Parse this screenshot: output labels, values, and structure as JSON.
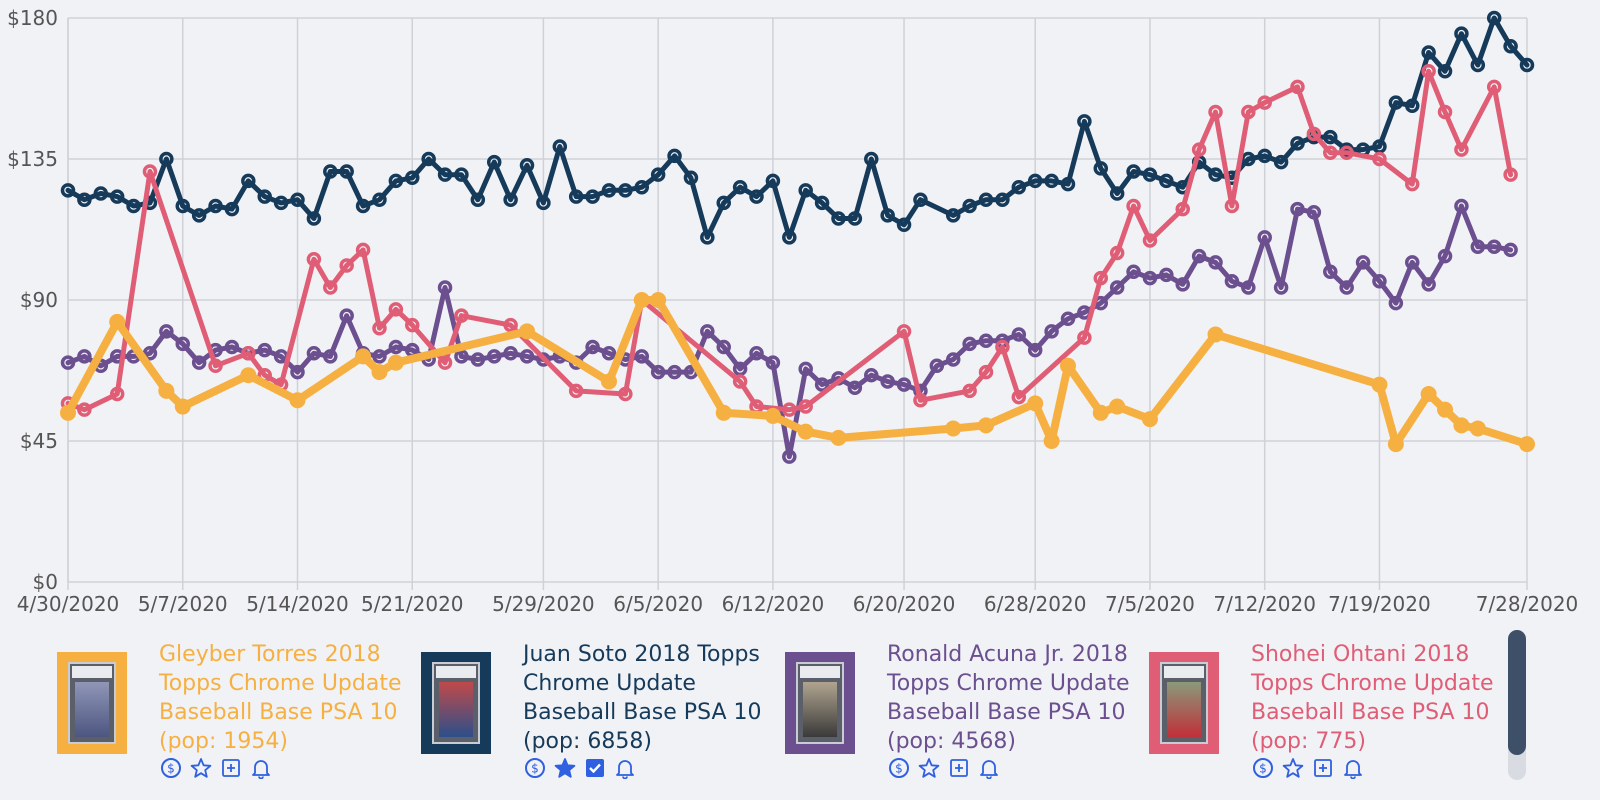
{
  "colors": {
    "torres": "#f6b041",
    "soto": "#163a5a",
    "acuna": "#6b4f8f",
    "ohtani": "#e05d76",
    "grid": "#cfd1d6",
    "action": "#2f60e0"
  },
  "chart_data": {
    "type": "line",
    "x_axis": {
      "type": "date",
      "range": [
        "2020-04-30",
        "2020-07-28"
      ],
      "ticks": [
        "4/30/2020",
        "5/7/2020",
        "5/14/2020",
        "5/21/2020",
        "5/29/2020",
        "6/5/2020",
        "6/12/2020",
        "6/20/2020",
        "6/28/2020",
        "7/5/2020",
        "7/12/2020",
        "7/19/2020",
        "7/28/2020"
      ]
    },
    "y_axis": {
      "range": [
        0,
        180
      ],
      "ticks": [
        "$0",
        "$45",
        "$90",
        "$135",
        "$180"
      ]
    },
    "grid": true,
    "series": [
      {
        "key": "soto",
        "name": "Juan Soto 2018 Topps Chrome Update Baseball Base PSA 10 (pop: 6858)",
        "color": "#163a5a",
        "x": [
          "2020-04-30",
          "2020-05-01",
          "2020-05-02",
          "2020-05-03",
          "2020-05-04",
          "2020-05-05",
          "2020-05-06",
          "2020-05-07",
          "2020-05-08",
          "2020-05-09",
          "2020-05-10",
          "2020-05-11",
          "2020-05-12",
          "2020-05-13",
          "2020-05-14",
          "2020-05-15",
          "2020-05-16",
          "2020-05-17",
          "2020-05-18",
          "2020-05-19",
          "2020-05-20",
          "2020-05-21",
          "2020-05-22",
          "2020-05-23",
          "2020-05-24",
          "2020-05-25",
          "2020-05-26",
          "2020-05-27",
          "2020-05-28",
          "2020-05-29",
          "2020-05-30",
          "2020-05-31",
          "2020-06-01",
          "2020-06-02",
          "2020-06-03",
          "2020-06-04",
          "2020-06-05",
          "2020-06-06",
          "2020-06-07",
          "2020-06-08",
          "2020-06-09",
          "2020-06-10",
          "2020-06-11",
          "2020-06-12",
          "2020-06-13",
          "2020-06-14",
          "2020-06-15",
          "2020-06-16",
          "2020-06-17",
          "2020-06-18",
          "2020-06-19",
          "2020-06-20",
          "2020-06-21",
          "2020-06-23",
          "2020-06-24",
          "2020-06-25",
          "2020-06-26",
          "2020-06-27",
          "2020-06-28",
          "2020-06-29",
          "2020-06-30",
          "2020-07-01",
          "2020-07-02",
          "2020-07-03",
          "2020-07-04",
          "2020-07-05",
          "2020-07-06",
          "2020-07-07",
          "2020-07-08",
          "2020-07-09",
          "2020-07-10",
          "2020-07-11",
          "2020-07-12",
          "2020-07-13",
          "2020-07-14",
          "2020-07-15",
          "2020-07-16",
          "2020-07-17",
          "2020-07-18",
          "2020-07-19",
          "2020-07-20",
          "2020-07-21",
          "2020-07-22",
          "2020-07-23",
          "2020-07-24",
          "2020-07-25",
          "2020-07-26",
          "2020-07-27",
          "2020-07-28"
        ],
        "values": [
          125,
          122,
          124,
          123,
          120,
          121,
          135,
          120,
          117,
          120,
          119,
          128,
          123,
          121,
          122,
          116,
          131,
          131,
          120,
          122,
          128,
          129,
          135,
          130,
          130,
          122,
          134,
          122,
          133,
          121,
          139,
          123,
          123,
          125,
          125,
          126,
          130,
          136,
          129,
          110,
          121,
          126,
          123,
          128,
          110,
          125,
          121,
          116,
          116,
          135,
          117,
          114,
          122,
          117,
          120,
          122,
          122,
          126,
          128,
          128,
          127,
          147,
          132,
          124,
          131,
          130,
          128,
          126,
          134,
          130,
          129,
          135,
          136,
          134,
          140,
          142,
          142,
          138,
          138,
          139,
          153,
          152,
          169,
          163,
          175,
          165,
          180,
          171,
          165
        ]
      },
      {
        "key": "acuna",
        "name": "Ronald Acuna Jr. 2018 Topps Chrome Update Baseball Base PSA 10 (pop: 4568)",
        "color": "#6b4f8f",
        "x": [
          "2020-04-30",
          "2020-05-01",
          "2020-05-02",
          "2020-05-03",
          "2020-05-04",
          "2020-05-05",
          "2020-05-06",
          "2020-05-07",
          "2020-05-08",
          "2020-05-09",
          "2020-05-10",
          "2020-05-11",
          "2020-05-12",
          "2020-05-13",
          "2020-05-14",
          "2020-05-15",
          "2020-05-16",
          "2020-05-17",
          "2020-05-18",
          "2020-05-19",
          "2020-05-20",
          "2020-05-21",
          "2020-05-22",
          "2020-05-23",
          "2020-05-24",
          "2020-05-25",
          "2020-05-26",
          "2020-05-27",
          "2020-05-28",
          "2020-05-29",
          "2020-05-30",
          "2020-05-31",
          "2020-06-01",
          "2020-06-02",
          "2020-06-03",
          "2020-06-04",
          "2020-06-05",
          "2020-06-06",
          "2020-06-07",
          "2020-06-08",
          "2020-06-09",
          "2020-06-10",
          "2020-06-11",
          "2020-06-12",
          "2020-06-13",
          "2020-06-14",
          "2020-06-15",
          "2020-06-16",
          "2020-06-17",
          "2020-06-18",
          "2020-06-19",
          "2020-06-20",
          "2020-06-21",
          "2020-06-22",
          "2020-06-23",
          "2020-06-24",
          "2020-06-25",
          "2020-06-26",
          "2020-06-27",
          "2020-06-28",
          "2020-06-29",
          "2020-06-30",
          "2020-07-01",
          "2020-07-02",
          "2020-07-03",
          "2020-07-04",
          "2020-07-05",
          "2020-07-06",
          "2020-07-07",
          "2020-07-08",
          "2020-07-09",
          "2020-07-10",
          "2020-07-11",
          "2020-07-12",
          "2020-07-13",
          "2020-07-14",
          "2020-07-15",
          "2020-07-16",
          "2020-07-17",
          "2020-07-18",
          "2020-07-19",
          "2020-07-20",
          "2020-07-21",
          "2020-07-22",
          "2020-07-23",
          "2020-07-24",
          "2020-07-25",
          "2020-07-26",
          "2020-07-27"
        ],
        "values": [
          70,
          72,
          69,
          72,
          72,
          73,
          80,
          76,
          70,
          74,
          75,
          73,
          74,
          72,
          67,
          73,
          72,
          85,
          73,
          72,
          75,
          74,
          71,
          94,
          72,
          71,
          72,
          73,
          72,
          71,
          72,
          70,
          75,
          73,
          71,
          72,
          67,
          67,
          67,
          80,
          75,
          68,
          73,
          70,
          40,
          68,
          63,
          65,
          62,
          66,
          64,
          63,
          61,
          69,
          71,
          76,
          77,
          77,
          79,
          74,
          80,
          84,
          86,
          89,
          94,
          99,
          97,
          98,
          95,
          104,
          102,
          96,
          94,
          110,
          94,
          119,
          118,
          99,
          94,
          102,
          96,
          89,
          102,
          95,
          104,
          120,
          107,
          107,
          106
        ]
      },
      {
        "key": "ohtani",
        "name": "Shohei Ohtani 2018 Topps Chrome Update Baseball Base PSA 10 (pop: 775)",
        "color": "#e05d76",
        "x": [
          "2020-04-30",
          "2020-05-01",
          "2020-05-03",
          "2020-05-05",
          "2020-05-09",
          "2020-05-11",
          "2020-05-12",
          "2020-05-13",
          "2020-05-15",
          "2020-05-16",
          "2020-05-17",
          "2020-05-18",
          "2020-05-19",
          "2020-05-20",
          "2020-05-21",
          "2020-05-23",
          "2020-05-24",
          "2020-05-27",
          "2020-05-31",
          "2020-06-03",
          "2020-06-04",
          "2020-06-10",
          "2020-06-11",
          "2020-06-13",
          "2020-06-14",
          "2020-06-20",
          "2020-06-21",
          "2020-06-24",
          "2020-06-25",
          "2020-06-26",
          "2020-06-27",
          "2020-07-01",
          "2020-07-02",
          "2020-07-03",
          "2020-07-04",
          "2020-07-05",
          "2020-07-07",
          "2020-07-08",
          "2020-07-09",
          "2020-07-10",
          "2020-07-11",
          "2020-07-12",
          "2020-07-14",
          "2020-07-15",
          "2020-07-16",
          "2020-07-17",
          "2020-07-19",
          "2020-07-21",
          "2020-07-22",
          "2020-07-23",
          "2020-07-24",
          "2020-07-26",
          "2020-07-27"
        ],
        "values": [
          57,
          55,
          60,
          131,
          69,
          73,
          66,
          63,
          103,
          94,
          101,
          106,
          81,
          87,
          82,
          70,
          85,
          82,
          61,
          60,
          90,
          64,
          56,
          55,
          56,
          80,
          58,
          61,
          67,
          75,
          59,
          78,
          97,
          105,
          120,
          109,
          119,
          138,
          150,
          120,
          150,
          153,
          158,
          143,
          137,
          137,
          135,
          127,
          163,
          150,
          138,
          158,
          130
        ]
      },
      {
        "key": "torres",
        "name": "Gleyber Torres 2018 Topps Chrome Update Baseball Base PSA 10 (pop: 1954)",
        "color": "#f6b041",
        "x": [
          "2020-04-30",
          "2020-05-03",
          "2020-05-06",
          "2020-05-07",
          "2020-05-11",
          "2020-05-14",
          "2020-05-18",
          "2020-05-19",
          "2020-05-20",
          "2020-05-28",
          "2020-06-02",
          "2020-06-04",
          "2020-06-05",
          "2020-06-09",
          "2020-06-12",
          "2020-06-14",
          "2020-06-16",
          "2020-06-23",
          "2020-06-25",
          "2020-06-28",
          "2020-06-29",
          "2020-06-30",
          "2020-07-02",
          "2020-07-03",
          "2020-07-05",
          "2020-07-09",
          "2020-07-19",
          "2020-07-20",
          "2020-07-22",
          "2020-07-23",
          "2020-07-24",
          "2020-07-25",
          "2020-07-28"
        ],
        "values": [
          54,
          83,
          61,
          56,
          66,
          58,
          72,
          67,
          70,
          80,
          64,
          90,
          90,
          54,
          53,
          48,
          46,
          49,
          50,
          57,
          45,
          69,
          54,
          56,
          52,
          79,
          63,
          44,
          60,
          55,
          50,
          49,
          44
        ]
      }
    ]
  },
  "legend": {
    "cards": [
      {
        "key": "torres",
        "title": "Gleyber Torres 2018 Topps Chrome Update Baseball Base PSA 10 (pop: 1954)",
        "color": "#f6b041",
        "watched": false,
        "added": false
      },
      {
        "key": "soto",
        "title": "Juan Soto 2018 Topps Chrome Update Baseball Base PSA 10 (pop: 6858)",
        "color": "#163a5a",
        "watched": true,
        "added": true
      },
      {
        "key": "acuna",
        "title": "Ronald Acuna Jr. 2018 Topps Chrome Update Baseball Base PSA 10 (pop: 4568)",
        "color": "#6b4f8f",
        "watched": false,
        "added": false
      },
      {
        "key": "ohtani",
        "title": "Shohei Ohtani 2018 Topps Chrome Update Baseball Base PSA 10 (pop: 775)",
        "color": "#e05d76",
        "watched": false,
        "added": false
      }
    ],
    "icons": [
      "price-icon",
      "star-icon",
      "add-box-icon",
      "bell-icon"
    ]
  }
}
